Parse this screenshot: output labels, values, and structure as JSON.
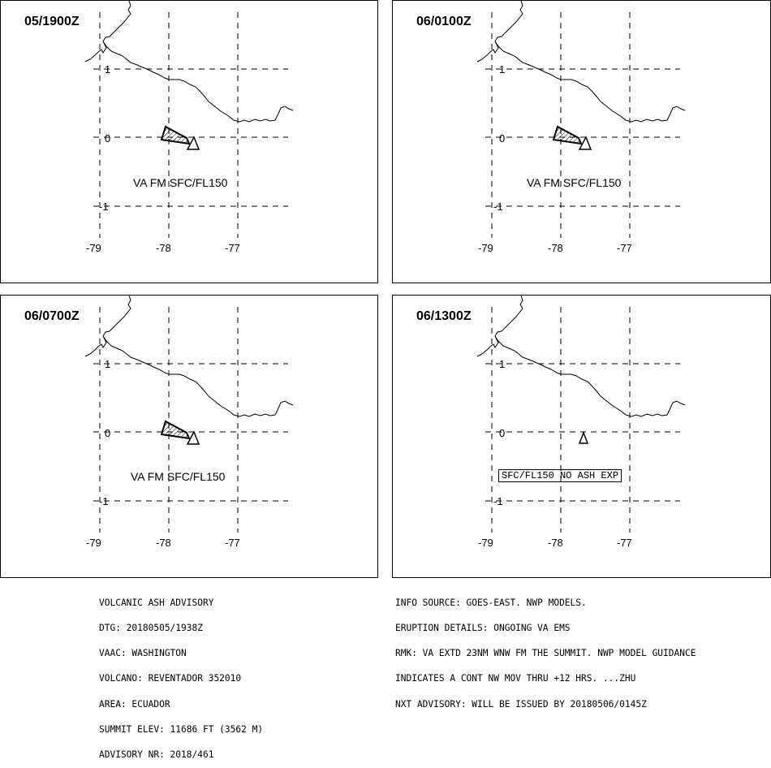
{
  "panels": [
    {
      "time": "05/1900Z",
      "label": "VA FM SFC/FL150",
      "boxed": false
    },
    {
      "time": "06/0100Z",
      "label": "VA FM SFC/FL150",
      "boxed": false
    },
    {
      "time": "06/0700Z",
      "label": "VA FM SFC/FL150",
      "boxed": false
    },
    {
      "time": "06/1300Z",
      "label": "SFC/FL150 NO ASH EXP",
      "boxed": true
    }
  ],
  "axes": {
    "lat_labels": [
      "1",
      "0",
      "-1"
    ],
    "lon_labels": [
      "-79",
      "-78",
      "-77"
    ]
  },
  "advisory_left": [
    "VOLCANIC ASH ADVISORY",
    "DTG: 20180505/1938Z",
    "VAAC: WASHINGTON",
    "VOLCANO: REVENTADOR 352010",
    "AREA: ECUADOR",
    "SUMMIT ELEV: 11686 FT (3562 M)",
    "ADVISORY NR: 2018/461"
  ],
  "advisory_right": [
    "INFO SOURCE: GOES-EAST. NWP MODELS.",
    "ERUPTION DETAILS: ONGOING VA EMS",
    "RMK: VA EXTD 23NM WNW FM THE SUMMIT. NWP MODEL GUIDANCE",
    "INDICATES A CONT NW MOV THRU +12 HRS. ...ZHU",
    "NXT ADVISORY: WILL BE ISSUED BY 20180506/0145Z"
  ]
}
